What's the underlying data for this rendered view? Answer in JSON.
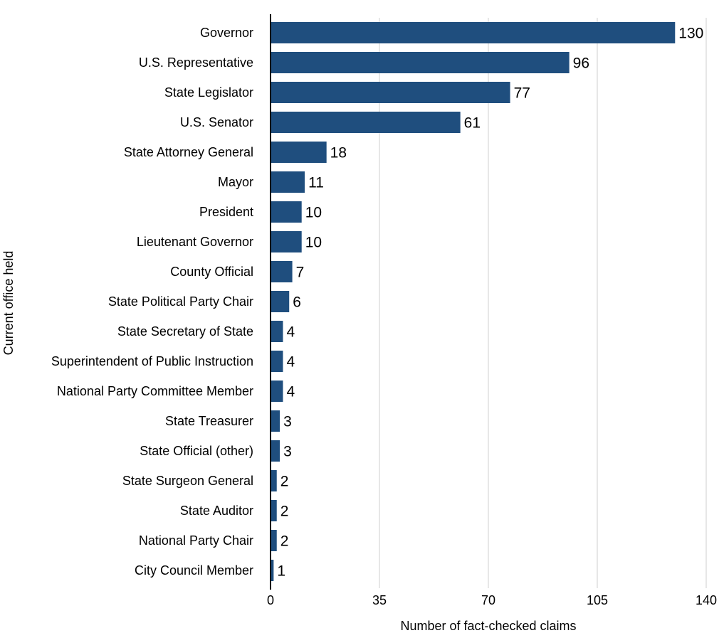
{
  "chart_data": {
    "type": "bar",
    "orientation": "horizontal",
    "title": "",
    "xlabel": "Number of fact-checked claims",
    "ylabel": "Current office held",
    "xlim": [
      0,
      140
    ],
    "xticks": [
      0,
      35,
      70,
      105,
      140
    ],
    "grid": true,
    "legend": "none",
    "bar_color": "#1f4e7e",
    "categories": [
      "Governor",
      "U.S. Representative",
      "State Legislator",
      "U.S. Senator",
      "State Attorney General",
      "Mayor",
      "President",
      "Lieutenant Governor",
      "County Official",
      "State Political Party Chair",
      "State Secretary of State",
      "Superintendent of Public Instruction",
      "National Party Committee Member",
      "State Treasurer",
      "State Official (other)",
      "State Surgeon General",
      "State Auditor",
      "National Party Chair",
      "City Council Member"
    ],
    "values": [
      130,
      96,
      77,
      61,
      18,
      11,
      10,
      10,
      7,
      6,
      4,
      4,
      4,
      3,
      3,
      2,
      2,
      2,
      1
    ]
  }
}
